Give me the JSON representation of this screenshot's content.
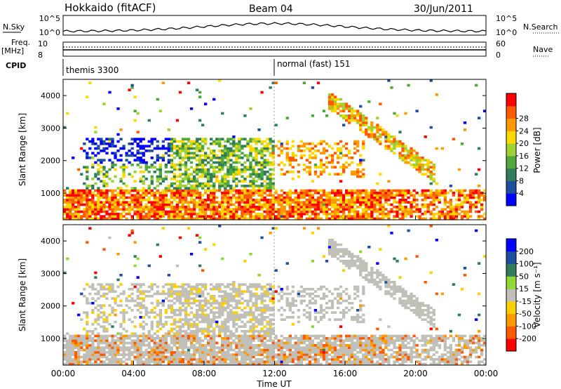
{
  "header": {
    "title": "Hokkaido (fitACF)",
    "beam": "Beam 04",
    "date": "30/Jun/2011"
  },
  "strips": {
    "nsky_label": "N.Sky",
    "nsearch_label": "N.Search",
    "freq_label_1": "Freq.",
    "freq_label_2": "[MHz]",
    "nave_label": "Nave",
    "cpid_label": "CPID",
    "nsky_ticks": [
      "10^5",
      "10^0"
    ],
    "nsearch_ticks": [
      "10^5",
      "10^0"
    ],
    "freq_ticks": [
      "10",
      "8"
    ],
    "nave_ticks": [
      "60",
      "0"
    ],
    "cpid_modes": [
      "themis 3300",
      "normal (fast) 151"
    ]
  },
  "colors": {
    "power_scale": [
      "#0000ff",
      "#1e4fa0",
      "#2f7d5a",
      "#4ea83c",
      "#9ed233",
      "#ffd800",
      "#ff9a00",
      "#ff5a00",
      "#ff0000"
    ],
    "velocity_scale": [
      "#0000ff",
      "#1e4fa0",
      "#2f7d5a",
      "#8ed838",
      "#c0c0b8",
      "#ffd000",
      "#ff9a00",
      "#ff5a00",
      "#ff0000"
    ]
  },
  "chart_data": [
    {
      "type": "heatmap",
      "title": "",
      "ylabel": "Slant Range [km]",
      "xlabel": "",
      "ylim": [
        180,
        4500
      ],
      "yticks": [
        "1000",
        "2000",
        "3000",
        "4000"
      ],
      "colorbar_label": "Power [dB]",
      "colorbar_ticks": [
        "4",
        "8",
        "12",
        "16",
        "20",
        "24",
        "28"
      ],
      "colorbar_range": [
        0,
        32
      ]
    },
    {
      "type": "heatmap",
      "title": "",
      "ylabel": "Slant Range [km]",
      "xlabel": "Time UT",
      "ylim": [
        180,
        4500
      ],
      "xlim": [
        "00:00",
        "24:00"
      ],
      "xticks": [
        "00:00",
        "04:00",
        "08:00",
        "12:00",
        "16:00",
        "20:00",
        "00:00"
      ],
      "yticks": [
        "1000",
        "2000",
        "3000",
        "4000"
      ],
      "colorbar_label": "Velocity [m s⁻¹]",
      "colorbar_ticks": [
        "200",
        "100",
        "50",
        "15",
        "-15",
        "-50",
        "-100",
        "-200"
      ],
      "colorbar_range": [
        -250,
        250
      ]
    }
  ]
}
